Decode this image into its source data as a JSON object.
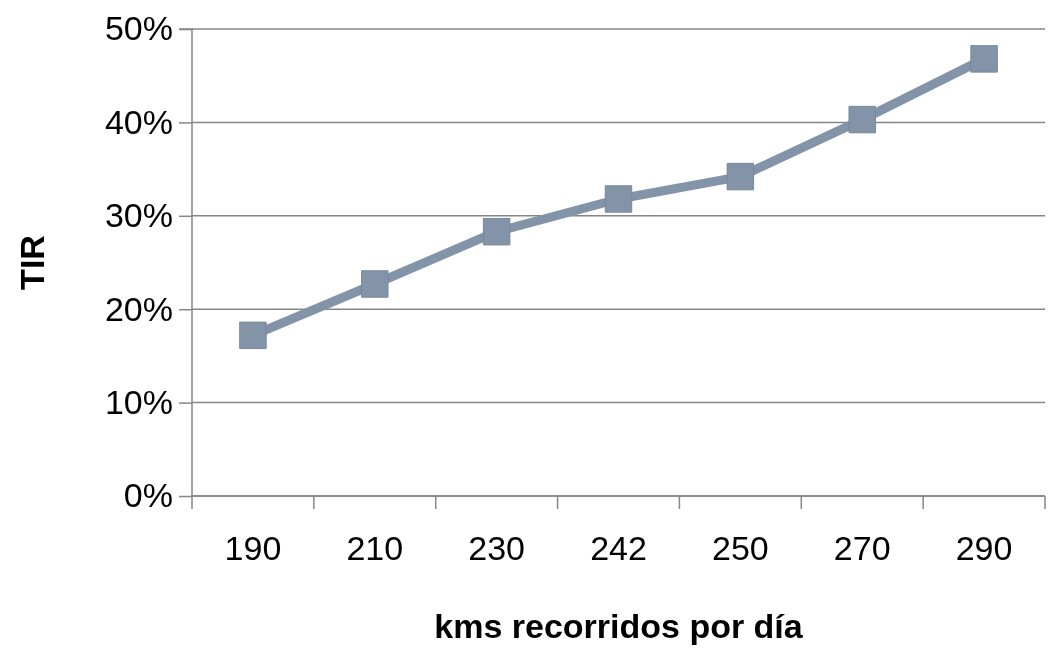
{
  "chart_data": {
    "type": "line",
    "xlabel": "kms recorridos por día",
    "ylabel": "TIR",
    "categories": [
      "190",
      "210",
      "230",
      "242",
      "250",
      "270",
      "290"
    ],
    "series": [
      {
        "color": "#8494a8",
        "values": [
          17.2,
          22.7,
          28.3,
          31.8,
          34.2,
          40.3,
          46.8
        ]
      }
    ],
    "ylim": [
      0,
      50
    ],
    "yticks": [
      {
        "value": 0,
        "label": "0%"
      },
      {
        "value": 10,
        "label": "10%"
      },
      {
        "value": 20,
        "label": "20%"
      },
      {
        "value": 30,
        "label": "30%"
      },
      {
        "value": 40,
        "label": "40%"
      },
      {
        "value": 50,
        "label": "50%"
      }
    ],
    "grid": "y",
    "marker": "square",
    "line_style": "solid"
  }
}
